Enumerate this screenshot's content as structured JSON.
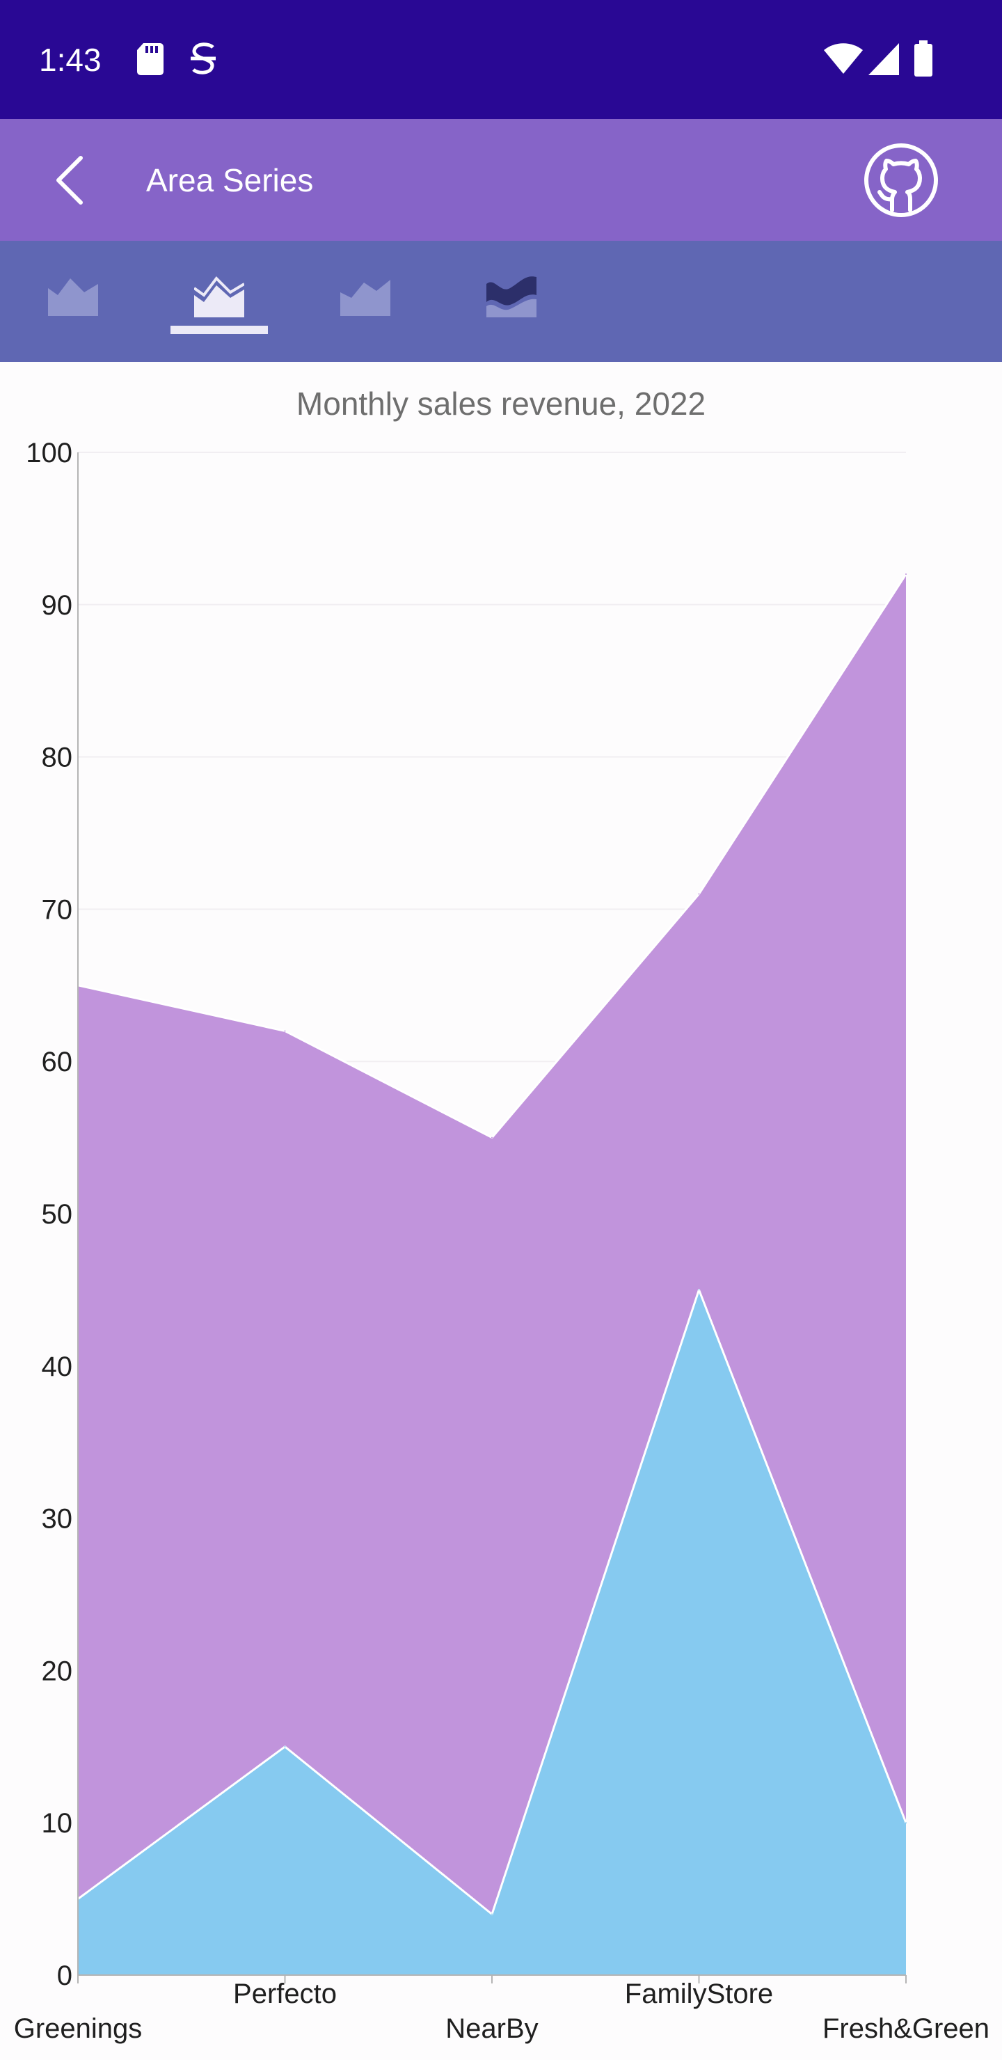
{
  "status_bar": {
    "time": "1:43",
    "icons": [
      "sd-card-icon",
      "vpn-key-icon",
      "wifi-icon",
      "signal-icon",
      "battery-icon"
    ]
  },
  "app_bar": {
    "title": "Area Series",
    "back_icon": "back-arrow-icon",
    "action_icon": "github-icon"
  },
  "tabs": [
    {
      "icon": "area-chart-icon",
      "selected": false
    },
    {
      "icon": "stacked-area-chart-icon",
      "selected": true
    },
    {
      "icon": "range-area-chart-icon",
      "selected": false
    },
    {
      "icon": "spline-area-chart-icon",
      "selected": false
    }
  ],
  "colors": {
    "status_bar": "#290894",
    "app_bar": "#8664c8",
    "tab_bar": "#5f67b3",
    "series_back": "#c194dc",
    "series_front": "#86caf0"
  },
  "chart_data": {
    "type": "area",
    "title": "Monthly sales revenue, 2022",
    "categories": [
      "Greenings",
      "Perfecto",
      "NearBy",
      "FamilyStore",
      "Fresh&Green"
    ],
    "series": [
      {
        "values": [
          65,
          62,
          55,
          71,
          92
        ],
        "color": "#c194dc"
      },
      {
        "values": [
          5,
          15,
          4,
          45,
          10
        ],
        "color": "#86caf0"
      }
    ],
    "ylim": [
      0,
      100
    ],
    "yticks": [
      "0",
      "10",
      "20",
      "30",
      "40",
      "50",
      "60",
      "70",
      "80",
      "90",
      "100"
    ],
    "grid": true,
    "legend": "none"
  }
}
